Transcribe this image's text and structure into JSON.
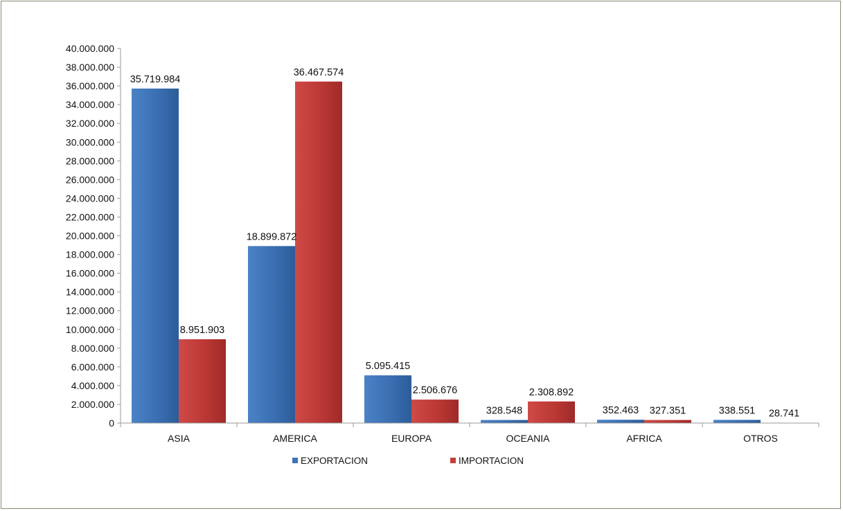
{
  "chart_data": {
    "type": "bar",
    "title": "",
    "xlabel": "",
    "ylabel": "",
    "categories": [
      "ASIA",
      "AMERICA",
      "EUROPA",
      "OCEANIA",
      "AFRICA",
      "OTROS"
    ],
    "series": [
      {
        "name": "EXPORTACION",
        "color": "#3d73b9",
        "values": [
          35719984,
          18899872,
          5095415,
          328548,
          352463,
          338551
        ],
        "labels": [
          "35.719.984",
          "18.899.872",
          "5.095.415",
          "328.548",
          "352.463",
          "338.551"
        ]
      },
      {
        "name": "IMPORTACION",
        "color": "#c63f3c",
        "values": [
          8951903,
          36467574,
          2506676,
          2308892,
          327351,
          28741
        ],
        "labels": [
          "8.951.903",
          "36.467.574",
          "2.506.676",
          "2.308.892",
          "327.351",
          "28.741"
        ]
      }
    ],
    "ylim": [
      0,
      40000000
    ],
    "yticks": [
      0,
      2000000,
      4000000,
      6000000,
      8000000,
      10000000,
      12000000,
      14000000,
      16000000,
      18000000,
      20000000,
      22000000,
      24000000,
      26000000,
      28000000,
      30000000,
      32000000,
      34000000,
      36000000,
      38000000,
      40000000
    ],
    "ytick_labels": [
      "0",
      "2.000.000",
      "4.000.000",
      "6.000.000",
      "8.000.000",
      "10.000.000",
      "12.000.000",
      "14.000.000",
      "16.000.000",
      "18.000.000",
      "20.000.000",
      "22.000.000",
      "24.000.000",
      "26.000.000",
      "28.000.000",
      "30.000.000",
      "32.000.000",
      "34.000.000",
      "36.000.000",
      "38.000.000",
      "40.000.000"
    ],
    "grid": false,
    "legend": "bottom"
  }
}
